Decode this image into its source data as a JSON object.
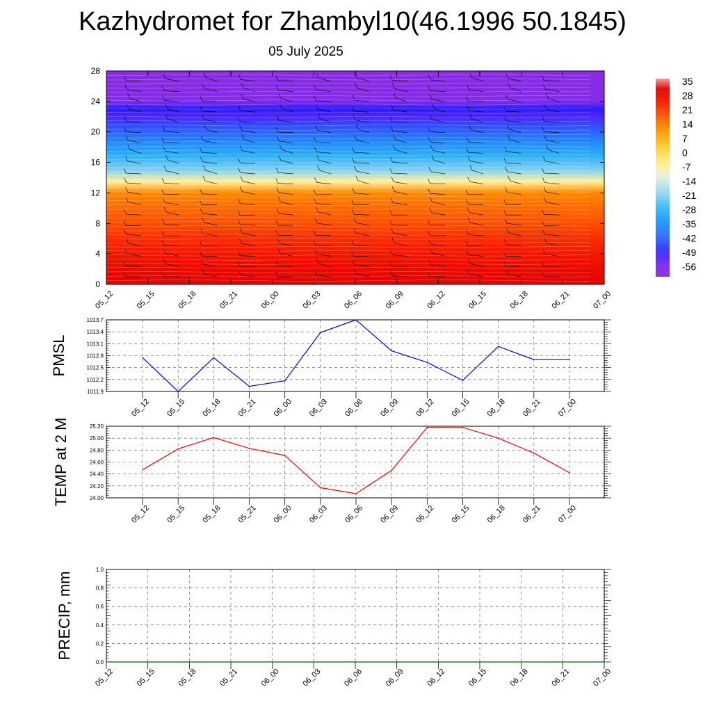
{
  "title": "Kazhydromet for Zhambyl10(46.1996 50.1845)",
  "subtitle": "05 July 2025",
  "time_labels": [
    "05_12",
    "05_15",
    "05_18",
    "05_21",
    "06_00",
    "06_03",
    "06_06",
    "06_09",
    "06_12",
    "06_15",
    "06_18",
    "06_21",
    "07_00"
  ],
  "colorbar": {
    "labels": [
      "35",
      "28",
      "21",
      "14",
      "7",
      "0",
      "-7",
      "-14",
      "-21",
      "-28",
      "-35",
      "-42",
      "-49",
      "-56"
    ],
    "colors": [
      "#8a2be2",
      "#3232ff",
      "#1e90ff",
      "#87cefa",
      "#fffacd",
      "#ffd700",
      "#ffa500",
      "#ff4500",
      "#e60000"
    ]
  },
  "chart_data": [
    {
      "type": "heatmap",
      "title": "",
      "xlabel": "",
      "ylabel": "",
      "x": [
        "05_12",
        "05_15",
        "05_18",
        "05_21",
        "06_00",
        "06_03",
        "06_06",
        "06_09",
        "06_12",
        "06_15",
        "06_18",
        "06_21",
        "07_00"
      ],
      "y_ticks": [
        0,
        4,
        8,
        12,
        16,
        20,
        24,
        28
      ],
      "ylim": [
        0,
        28
      ],
      "color_range": [
        -56,
        35
      ],
      "profile": {
        "levels": [
          0,
          2,
          4,
          6,
          8,
          10,
          12,
          13.5,
          15,
          17,
          19,
          21,
          22,
          23,
          24,
          28
        ],
        "temperature": [
          30,
          27,
          24,
          21,
          17,
          14,
          10,
          -10,
          -25,
          -33,
          -42,
          -50,
          -56,
          -54,
          -62,
          -66
        ]
      },
      "overlay": "wind barbs"
    },
    {
      "type": "line",
      "ylabel": "PMSL",
      "x": [
        "05_12",
        "05_15",
        "05_18",
        "05_21",
        "06_00",
        "06_03",
        "06_06",
        "06_09",
        "06_12",
        "06_15",
        "06_18",
        "06_21",
        "07_00"
      ],
      "values": [
        1012.75,
        1011.9,
        1012.75,
        1012.03,
        1012.17,
        1013.38,
        1013.7,
        1012.92,
        1012.63,
        1012.18,
        1013.03,
        1012.7,
        1012.7
      ],
      "ylim": [
        1011.9,
        1013.7
      ],
      "y_ticks": [
        "1011.9",
        "1012.2",
        "1012.5",
        "1012.8",
        "1013.1",
        "1013.4",
        "1013.7"
      ],
      "color": "#0000ff",
      "grid": true
    },
    {
      "type": "line",
      "ylabel": "TEMP at 2 M",
      "x": [
        "05_12",
        "05_15",
        "05_18",
        "05_21",
        "06_00",
        "06_03",
        "06_06",
        "06_09",
        "06_12",
        "06_15",
        "06_18",
        "06_21",
        "07_00"
      ],
      "values": [
        24.47,
        24.82,
        25.01,
        24.83,
        24.71,
        24.17,
        24.07,
        24.46,
        25.18,
        25.18,
        25.0,
        24.75,
        24.42
      ],
      "ylim": [
        24.0,
        25.2
      ],
      "y_ticks": [
        "24.00",
        "24.20",
        "24.40",
        "24.60",
        "24.80",
        "25.00",
        "25.20"
      ],
      "color": "#ff0000",
      "grid": true
    },
    {
      "type": "line",
      "ylabel": "PRECIP, mm",
      "x": [
        "05_12",
        "05_15",
        "05_18",
        "05_21",
        "06_00",
        "06_03",
        "06_06",
        "06_09",
        "06_12",
        "06_15",
        "06_18",
        "06_21",
        "07_00"
      ],
      "values": [
        0,
        0,
        0,
        0,
        0,
        0,
        0,
        0,
        0,
        0,
        0,
        0,
        0
      ],
      "ylim": [
        0,
        1
      ],
      "y_ticks": [
        "0.0",
        "0.2",
        "0.4",
        "0.6",
        "0.8",
        "1.0"
      ],
      "color": "#006400",
      "grid": true
    }
  ]
}
